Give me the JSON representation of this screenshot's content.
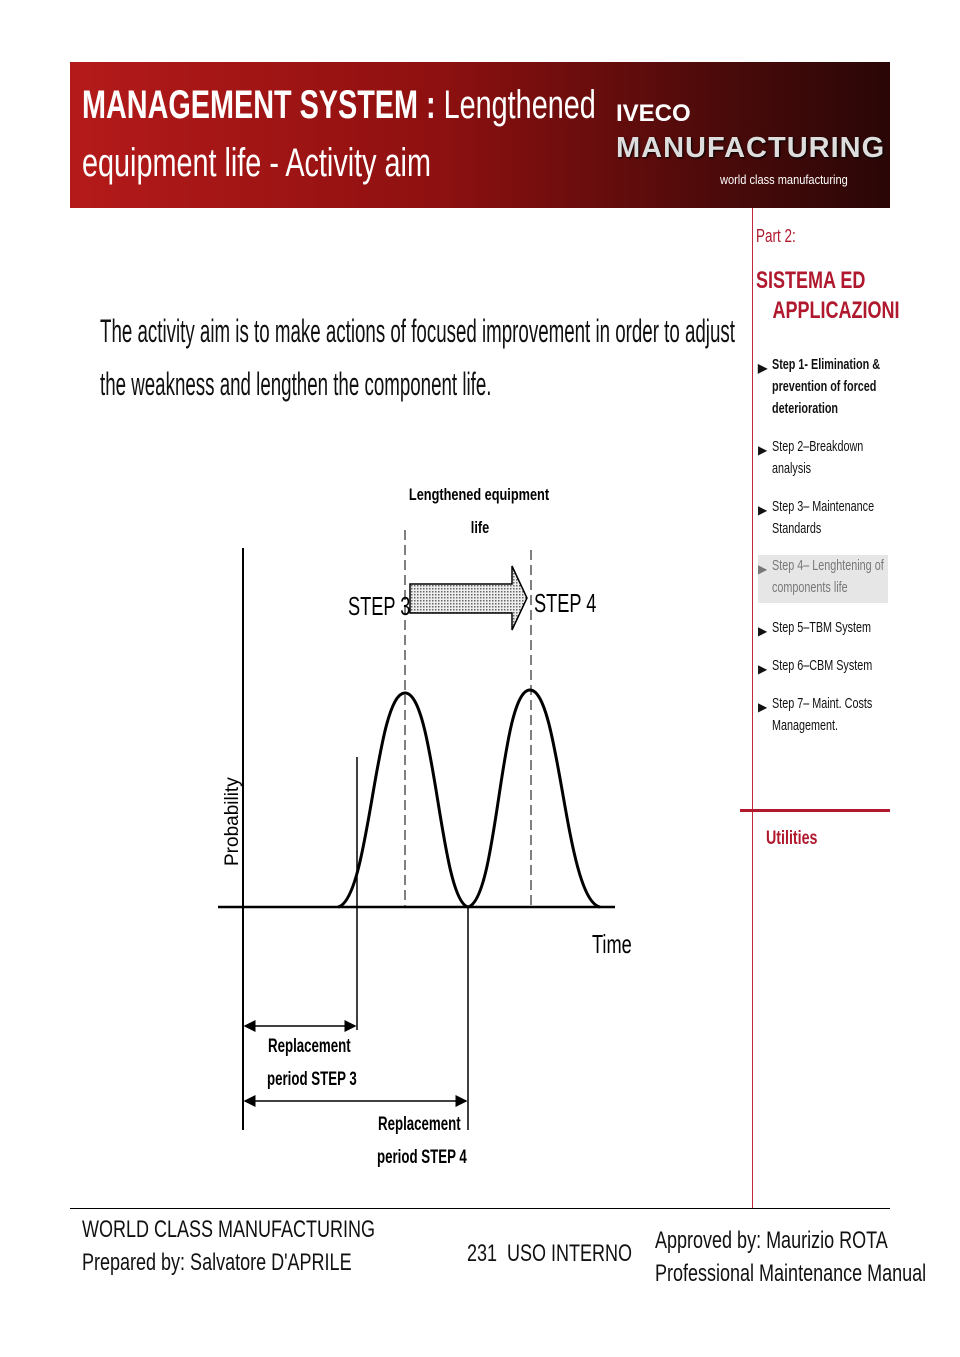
{
  "header": {
    "title_bold": "MANAGEMENT SYSTEM :",
    "title_rest": " Lengthened",
    "title_line2": "equipment life - Activity aim",
    "logo_top": "IVECO",
    "logo_main": "MANUFACTURING",
    "logo_tagline": "world class manufacturing"
  },
  "body": {
    "line1": "The activity aim is to make actions of focused improvement in order to adjust",
    "line2": "the weakness and lengthen the component life."
  },
  "diagram": {
    "top_label_1": "Lengthened equipment",
    "top_label_2": "life",
    "step3": "STEP 3",
    "step4": "STEP 4",
    "y_axis": "Probability",
    "x_axis": "Time",
    "rep3_1": "Replacement",
    "rep3_2": "period STEP 3",
    "rep4_1": "Replacement",
    "rep4_2": "period STEP 4"
  },
  "sidebar": {
    "part": "Part 2:",
    "section_1": "SISTEMA ED",
    "section_2": "APPLICAZIONI",
    "items": [
      {
        "label": "Step 1- Elimination & prevention of forced deterioration",
        "active": false
      },
      {
        "label": "Step 2–Breakdown analysis",
        "active": false
      },
      {
        "label": "Step 3– Maintenance Standards",
        "active": false
      },
      {
        "label": "Step 4– Lenghtening of components life",
        "active": true
      },
      {
        "label": "Step 5–TBM System",
        "active": false
      },
      {
        "label": "Step 6–CBM System",
        "active": false
      },
      {
        "label": "Step 7– Maint. Costs Management.",
        "active": false
      }
    ],
    "utilities": "Utilities"
  },
  "footer": {
    "left_1": "WORLD CLASS MANUFACTURING",
    "left_2": "Prepared by: Salvatore D'APRILE",
    "page": "231",
    "classification": "USO INTERNO",
    "right_1": "Approved by: Maurizio ROTA",
    "right_2": "Professional Maintenance Manual"
  },
  "colors": {
    "brand_red": "#b0182e"
  }
}
